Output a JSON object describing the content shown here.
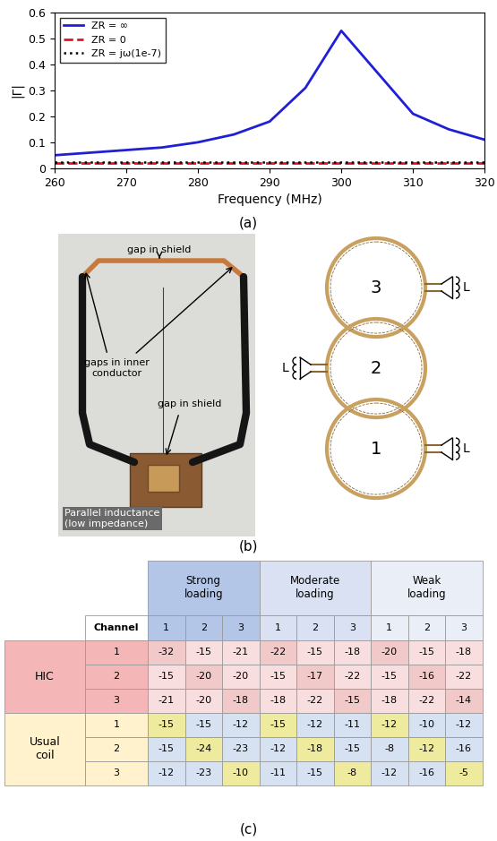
{
  "chart_data": {
    "type": "line",
    "x_label": "Frequency (MHz)",
    "y_label": "|Γ|",
    "xlim": [
      260,
      320
    ],
    "xticks": [
      260,
      270,
      280,
      290,
      300,
      310,
      320
    ],
    "ylim": [
      0,
      0.6
    ],
    "yticks": [
      0,
      0.1,
      0.2,
      0.3,
      0.4,
      0.5,
      0.6
    ],
    "legend": "upper left",
    "grid": false,
    "series": [
      {
        "name": "ZR = ∞",
        "color": "#1f1fd6",
        "line_style": "solid",
        "x": [
          260,
          265,
          270,
          275,
          280,
          285,
          290,
          295,
          300,
          310,
          315,
          320
        ],
        "values": [
          0.05,
          0.06,
          0.07,
          0.08,
          0.1,
          0.13,
          0.18,
          0.31,
          0.53,
          0.21,
          0.15,
          0.11
        ]
      },
      {
        "name": "ZR = 0",
        "color": "#e8101e",
        "line_style": "dashed",
        "x": [
          260,
          270,
          280,
          290,
          300,
          310,
          320
        ],
        "values": [
          0.02,
          0.02,
          0.02,
          0.02,
          0.02,
          0.02,
          0.02
        ]
      },
      {
        "name": "ZR = jω(1e-7)",
        "color": "#000000",
        "line_style": "dotted",
        "x": [
          260,
          270,
          280,
          290,
          300,
          310,
          320
        ],
        "values": [
          0.022,
          0.022,
          0.022,
          0.022,
          0.022,
          0.022,
          0.022
        ]
      }
    ]
  },
  "panel_labels": [
    "(a)",
    "(b)",
    "(c)"
  ],
  "photo": {
    "annotations": {
      "top_gap": "gap in shield",
      "inner_gaps": "gaps in inner\nconductor",
      "bottom_gap": "gap in shield",
      "inductance": "Parallel inductance\n(low impedance)"
    }
  },
  "diagram": {
    "coils": [
      "3",
      "2",
      "1"
    ],
    "inductor_label": "L"
  },
  "table": {
    "groups": [
      "Strong\nloading",
      "Moderate\nloading",
      "Weak\nloading"
    ],
    "channel_header": "Channel",
    "channels": [
      1,
      2,
      3
    ],
    "row_groups": [
      {
        "name": "HIC",
        "rows": [
          {
            "channel": 1,
            "values": [
              -32,
              -15,
              -21,
              -22,
              -15,
              -18,
              -20,
              -15,
              -18
            ]
          },
          {
            "channel": 2,
            "values": [
              -15,
              -20,
              -20,
              -15,
              -17,
              -22,
              -15,
              -16,
              -22
            ]
          },
          {
            "channel": 3,
            "values": [
              -21,
              -20,
              -18,
              -18,
              -22,
              -15,
              -18,
              -22,
              -14
            ]
          }
        ]
      },
      {
        "name": "Usual\ncoil",
        "rows": [
          {
            "channel": 1,
            "values": [
              -15,
              -15,
              -12,
              -15,
              -12,
              -11,
              -12,
              -10,
              -12
            ]
          },
          {
            "channel": 2,
            "values": [
              -15,
              -24,
              -23,
              -12,
              -18,
              -15,
              -8,
              -12,
              -16
            ]
          },
          {
            "channel": 3,
            "values": [
              -12,
              -23,
              -10,
              -11,
              -15,
              -8,
              -12,
              -16,
              -5
            ]
          }
        ]
      }
    ]
  }
}
